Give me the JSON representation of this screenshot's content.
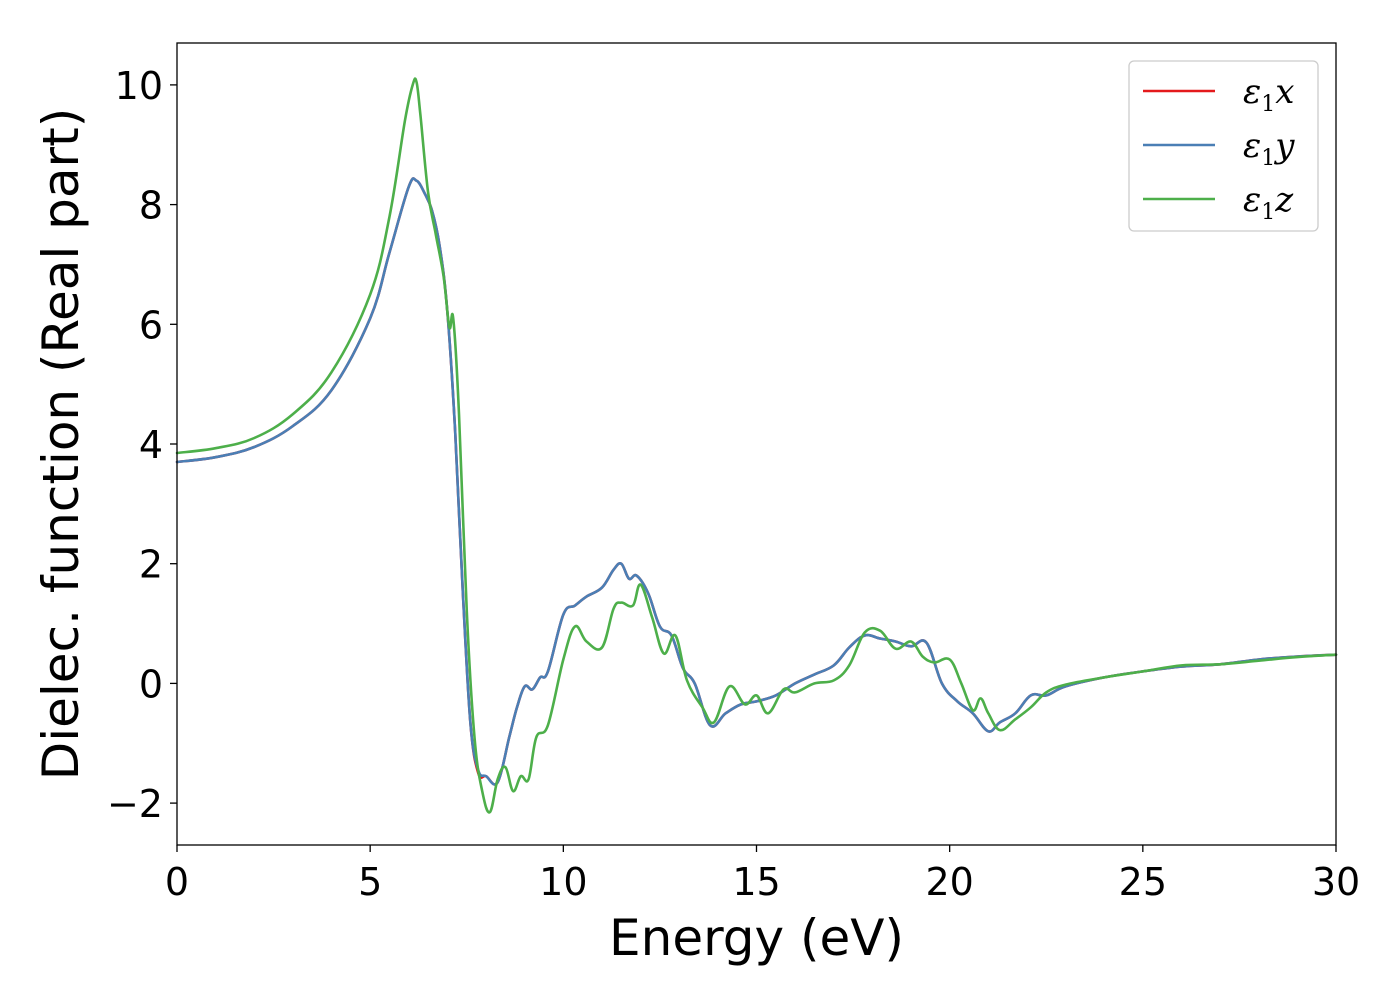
{
  "chart_data": {
    "type": "line",
    "xlabel": "Energy (eV)",
    "ylabel": "Dielec. function (Real part)",
    "xlim": [
      0,
      30
    ],
    "ylim": [
      -2.7,
      10.7
    ],
    "xticks": [
      0,
      5,
      10,
      15,
      20,
      25,
      30
    ],
    "xtick_labels": [
      "0",
      "5",
      "10",
      "15",
      "20",
      "25",
      "30"
    ],
    "yticks": [
      -2,
      0,
      2,
      4,
      6,
      8,
      10
    ],
    "ytick_labels": [
      "−2",
      "0",
      "2",
      "4",
      "6",
      "8",
      "10"
    ],
    "grid": false,
    "legend_position": "top-right",
    "series": [
      {
        "name": "ε1x",
        "legend_symbol": "ε",
        "legend_sub": "1",
        "legend_suffix": "x",
        "color": "#e41a1c",
        "x": [
          0,
          1,
          2,
          3,
          4,
          5,
          5.5,
          6.0,
          6.2,
          6.4,
          6.6,
          6.8,
          7.0,
          7.2,
          7.4,
          7.6,
          7.8,
          8.0,
          8.3,
          8.6,
          8.8,
          9.0,
          9.2,
          9.4,
          9.6,
          10.0,
          10.3,
          10.6,
          11.0,
          11.3,
          11.5,
          11.7,
          11.9,
          12.2,
          12.5,
          12.8,
          13.1,
          13.4,
          13.8,
          14.2,
          14.6,
          15.0,
          15.5,
          16.0,
          16.5,
          17.0,
          17.4,
          17.8,
          18.2,
          18.6,
          19.0,
          19.4,
          19.8,
          20.2,
          20.6,
          21.0,
          21.3,
          21.7,
          22.1,
          22.5,
          23.0,
          24.0,
          25.0,
          26.0,
          27.0,
          28.0,
          29.0,
          30.0
        ],
        "y": [
          3.7,
          3.78,
          3.95,
          4.3,
          4.9,
          6.1,
          7.2,
          8.3,
          8.4,
          8.2,
          7.9,
          7.3,
          6.2,
          4.2,
          1.5,
          -0.7,
          -1.5,
          -1.55,
          -1.65,
          -0.9,
          -0.4,
          -0.05,
          -0.1,
          0.1,
          0.2,
          1.15,
          1.3,
          1.45,
          1.6,
          1.9,
          2.0,
          1.75,
          1.8,
          1.5,
          0.95,
          0.8,
          0.25,
          0.0,
          -0.7,
          -0.5,
          -0.35,
          -0.3,
          -0.2,
          0.0,
          0.15,
          0.3,
          0.6,
          0.8,
          0.75,
          0.7,
          0.62,
          0.68,
          0.0,
          -0.3,
          -0.5,
          -0.8,
          -0.65,
          -0.5,
          -0.2,
          -0.2,
          -0.05,
          0.1,
          0.2,
          0.28,
          0.32,
          0.4,
          0.45,
          0.48
        ]
      },
      {
        "name": "ε1y",
        "legend_symbol": "ε",
        "legend_sub": "1",
        "legend_suffix": "y",
        "color": "#4a7fb5",
        "x": [
          0,
          1,
          2,
          3,
          4,
          5,
          5.5,
          6.0,
          6.2,
          6.4,
          6.6,
          6.8,
          7.0,
          7.2,
          7.4,
          7.6,
          7.8,
          8.0,
          8.3,
          8.6,
          8.8,
          9.0,
          9.2,
          9.4,
          9.6,
          10.0,
          10.3,
          10.6,
          11.0,
          11.3,
          11.5,
          11.7,
          11.9,
          12.2,
          12.5,
          12.8,
          13.1,
          13.4,
          13.8,
          14.2,
          14.6,
          15.0,
          15.5,
          16.0,
          16.5,
          17.0,
          17.4,
          17.8,
          18.2,
          18.6,
          19.0,
          19.4,
          19.8,
          20.2,
          20.6,
          21.0,
          21.3,
          21.7,
          22.1,
          22.5,
          23.0,
          24.0,
          25.0,
          26.0,
          27.0,
          28.0,
          29.0,
          30.0
        ],
        "y": [
          3.7,
          3.78,
          3.95,
          4.3,
          4.9,
          6.1,
          7.2,
          8.3,
          8.4,
          8.2,
          7.9,
          7.3,
          6.2,
          4.2,
          1.5,
          -0.7,
          -1.45,
          -1.55,
          -1.65,
          -0.9,
          -0.4,
          -0.05,
          -0.1,
          0.1,
          0.2,
          1.15,
          1.3,
          1.45,
          1.6,
          1.9,
          2.0,
          1.75,
          1.8,
          1.5,
          0.95,
          0.8,
          0.25,
          0.0,
          -0.7,
          -0.5,
          -0.35,
          -0.3,
          -0.2,
          0.0,
          0.15,
          0.3,
          0.6,
          0.8,
          0.75,
          0.7,
          0.62,
          0.68,
          0.0,
          -0.3,
          -0.5,
          -0.8,
          -0.65,
          -0.5,
          -0.2,
          -0.2,
          -0.05,
          0.1,
          0.2,
          0.28,
          0.32,
          0.4,
          0.45,
          0.48
        ]
      },
      {
        "name": "ε1z",
        "legend_symbol": "ε",
        "legend_sub": "1",
        "legend_suffix": "z",
        "color": "#4daf4a",
        "x": [
          0,
          1,
          2,
          3,
          4,
          5,
          5.5,
          5.9,
          6.1,
          6.2,
          6.3,
          6.5,
          6.7,
          6.9,
          7.05,
          7.15,
          7.3,
          7.5,
          7.7,
          7.9,
          8.1,
          8.3,
          8.5,
          8.7,
          8.9,
          9.1,
          9.3,
          9.6,
          10.0,
          10.3,
          10.6,
          11.0,
          11.3,
          11.5,
          11.8,
          12.0,
          12.3,
          12.6,
          12.9,
          13.2,
          13.6,
          13.9,
          14.3,
          14.7,
          15.0,
          15.3,
          15.7,
          16.0,
          16.5,
          17.0,
          17.4,
          17.8,
          18.2,
          18.6,
          19.0,
          19.3,
          19.6,
          20.0,
          20.3,
          20.6,
          20.8,
          21.0,
          21.3,
          21.7,
          22.1,
          22.5,
          23.0,
          24.0,
          25.0,
          26.0,
          27.0,
          28.0,
          29.0,
          30.0
        ],
        "y": [
          3.85,
          3.93,
          4.1,
          4.5,
          5.2,
          6.5,
          7.8,
          9.4,
          10.0,
          10.05,
          9.5,
          8.2,
          7.5,
          6.8,
          5.95,
          6.1,
          4.5,
          1.2,
          -0.9,
          -1.8,
          -2.15,
          -1.6,
          -1.4,
          -1.8,
          -1.55,
          -1.6,
          -0.9,
          -0.7,
          0.4,
          0.95,
          0.7,
          0.6,
          1.25,
          1.35,
          1.3,
          1.65,
          1.1,
          0.5,
          0.8,
          0.05,
          -0.4,
          -0.65,
          -0.05,
          -0.35,
          -0.2,
          -0.5,
          -0.1,
          -0.15,
          0.0,
          0.05,
          0.3,
          0.85,
          0.88,
          0.58,
          0.7,
          0.45,
          0.35,
          0.4,
          0.0,
          -0.45,
          -0.25,
          -0.5,
          -0.78,
          -0.6,
          -0.4,
          -0.15,
          -0.02,
          0.1,
          0.2,
          0.3,
          0.32,
          0.38,
          0.44,
          0.48
        ]
      }
    ]
  }
}
